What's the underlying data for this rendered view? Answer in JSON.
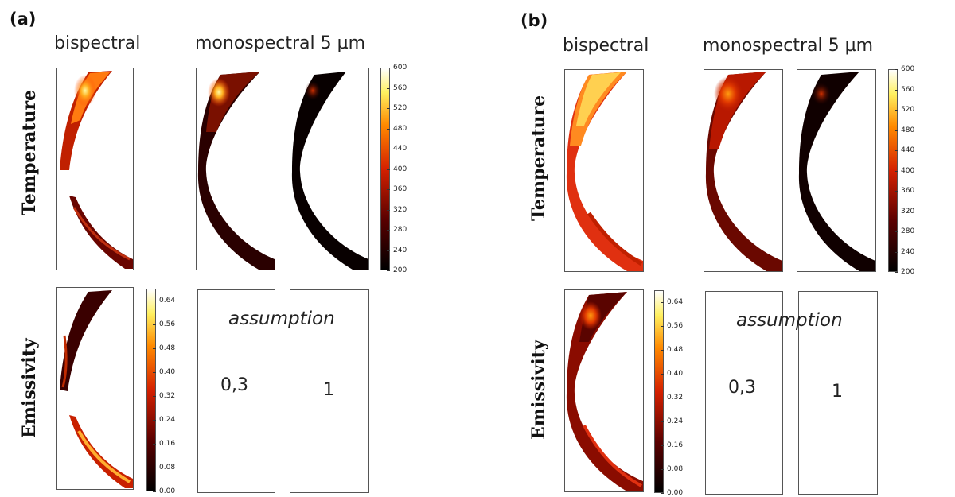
{
  "panels": [
    {
      "tag": "(a)",
      "col_bispectral": "bispectral",
      "col_monospectral": "monospectral 5 µm",
      "row_temperature": "Temperature",
      "row_emissivity": "Emissivity",
      "assumption": "assumption",
      "assumed_values": [
        "0,3",
        "1"
      ]
    },
    {
      "tag": "(b)",
      "col_bispectral": "bispectral",
      "col_monospectral": "monospectral 5 µm",
      "row_temperature": "Temperature",
      "row_emissivity": "Emissivity",
      "assumption": "assumption",
      "assumed_values": [
        "0,3",
        "1"
      ]
    }
  ],
  "colorbars": {
    "temperature": {
      "ticks": [
        "600",
        "560",
        "520",
        "480",
        "440",
        "400",
        "360",
        "320",
        "280",
        "240",
        "200"
      ],
      "range": [
        200,
        600
      ]
    },
    "emissivity": {
      "ticks": [
        "0.64",
        "0.56",
        "0.48",
        "0.40",
        "0.32",
        "0.24",
        "0.16",
        "0.08",
        "0.00"
      ],
      "range": [
        0,
        0.68
      ]
    }
  },
  "colormap": "afmhot",
  "colors": {
    "black": "#000000",
    "dark_red": "#5a0000",
    "red": "#d42000",
    "orange": "#ff8a00",
    "yellow": "#fff060",
    "white": "#ffffff"
  }
}
